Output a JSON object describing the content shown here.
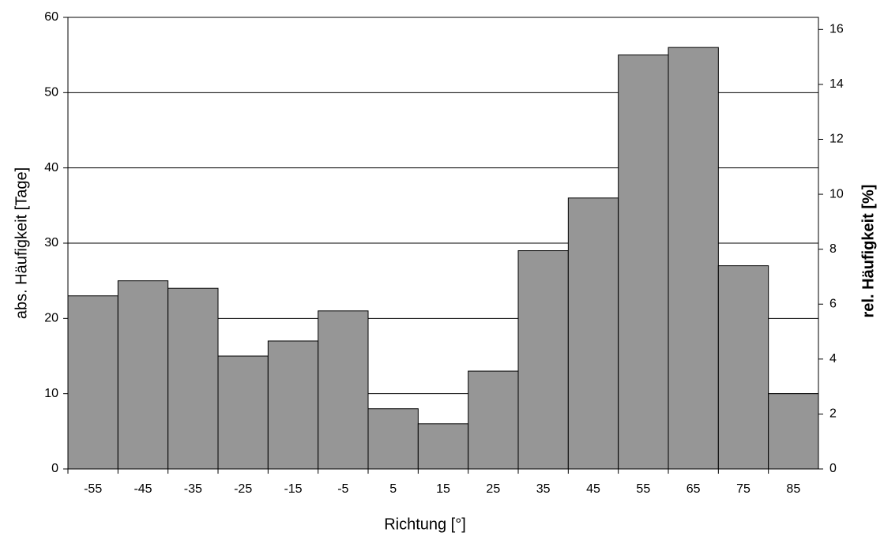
{
  "chart_data": {
    "type": "bar",
    "x_label": "Richtung [°]",
    "y_label": "abs. Häufigkeit [Tage]",
    "y2_label": "rel. Häufigkeit [%]",
    "categories": [
      "-55",
      "-45",
      "-35",
      "-25",
      "-15",
      "-5",
      "5",
      "15",
      "25",
      "35",
      "45",
      "55",
      "65",
      "75",
      "85"
    ],
    "values": [
      23,
      25,
      24,
      15,
      17,
      21,
      8,
      6,
      13,
      29,
      36,
      55,
      56,
      27,
      10
    ],
    "color": "#969696",
    "ylim": [
      0,
      60
    ],
    "yticks": [
      0,
      10,
      20,
      30,
      40,
      50,
      60
    ],
    "y2lim": [
      0,
      16.44
    ],
    "y2ticks": [
      0,
      2,
      4,
      6,
      8,
      10,
      12,
      14,
      16
    ],
    "grid": true
  }
}
